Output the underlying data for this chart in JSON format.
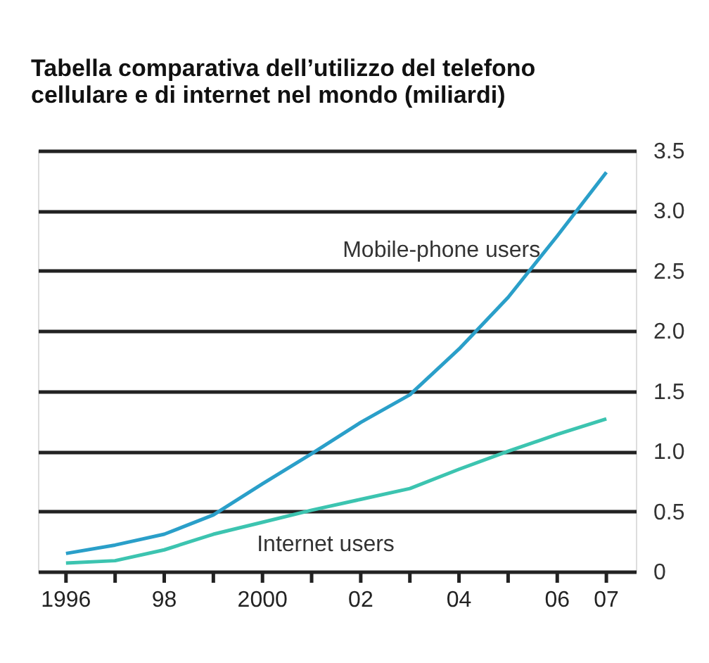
{
  "chart_data": {
    "type": "line",
    "title": "Tabella comparativa dell’utilizzo del telefono cellulare e di internet nel mondo (miliardi)",
    "x": [
      1996,
      1997,
      1998,
      1999,
      2000,
      2001,
      2002,
      2003,
      2004,
      2005,
      2006,
      2007
    ],
    "series": [
      {
        "name": "Mobile-phone users",
        "color": "#2a9fc9",
        "values": [
          0.15,
          0.22,
          0.31,
          0.47,
          0.73,
          0.98,
          1.24,
          1.47,
          1.85,
          2.28,
          2.79,
          3.32
        ]
      },
      {
        "name": "Internet users",
        "color": "#3cc4b0",
        "values": [
          0.07,
          0.09,
          0.18,
          0.31,
          0.41,
          0.51,
          0.6,
          0.69,
          0.85,
          1.0,
          1.14,
          1.27
        ]
      }
    ],
    "xlim": [
      1995.43,
      2007.6
    ],
    "xticks": [
      1996,
      {
        "value": 1997,
        "label": null
      },
      {
        "value": 1998,
        "label": "98"
      },
      {
        "value": 1999,
        "label": null
      },
      2000,
      {
        "value": 2001,
        "label": null
      },
      {
        "value": 2002,
        "label": "02"
      },
      {
        "value": 2003,
        "label": null
      },
      {
        "value": 2004,
        "label": "04"
      },
      {
        "value": 2005,
        "label": null
      },
      {
        "value": 2006,
        "label": "06"
      },
      {
        "value": 2007,
        "label": "07"
      }
    ],
    "ylim": [
      0,
      3.5
    ],
    "yticks": [
      0,
      0.5,
      {
        "value": 1,
        "label": "1.0"
      },
      1.5,
      {
        "value": 2,
        "label": "2.0"
      },
      2.5,
      {
        "value": 3,
        "label": "3.0"
      },
      3.5
    ],
    "grid": "y",
    "legend": false,
    "marker": "none",
    "line_style": "solid"
  }
}
